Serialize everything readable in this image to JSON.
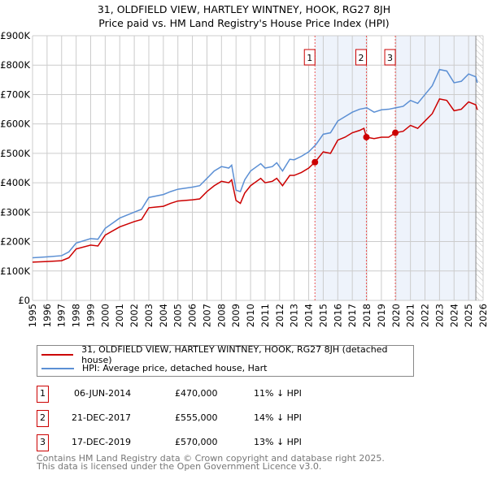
{
  "chart_data": {
    "type": "line",
    "title": "31, OLDFIELD VIEW, HARTLEY WINTNEY, HOOK, RG27 8JH",
    "subtitle": "Price paid vs. HM Land Registry's House Price Index (HPI)",
    "xlim": [
      1995,
      2026
    ],
    "ylim": [
      0,
      900000
    ],
    "x_ticks": [
      "1995",
      "1996",
      "1997",
      "1998",
      "1999",
      "2000",
      "2001",
      "2002",
      "2003",
      "2004",
      "2005",
      "2006",
      "2007",
      "2008",
      "2009",
      "2010",
      "2011",
      "2012",
      "2013",
      "2014",
      "2015",
      "2016",
      "2017",
      "2018",
      "2019",
      "2020",
      "2021",
      "2022",
      "2023",
      "2024",
      "2025",
      "2026"
    ],
    "y_ticks": [
      {
        "v": 0,
        "label": "£0"
      },
      {
        "v": 100000,
        "label": "£100K"
      },
      {
        "v": 200000,
        "label": "£200K"
      },
      {
        "v": 300000,
        "label": "£300K"
      },
      {
        "v": 400000,
        "label": "£400K"
      },
      {
        "v": 500000,
        "label": "£500K"
      },
      {
        "v": 600000,
        "label": "£600K"
      },
      {
        "v": 700000,
        "label": "£700K"
      },
      {
        "v": 800000,
        "label": "£800K"
      },
      {
        "v": 900000,
        "label": "£900K"
      }
    ],
    "grid": true,
    "series": [
      {
        "name": "31, OLDFIELD VIEW, HARTLEY WINTNEY, HOOK, RG27 8JH (detached house)",
        "color": "#cc0000",
        "x": [
          1995,
          1996,
          1997,
          1997.5,
          1998,
          1999,
          1999.5,
          2000,
          2001,
          2002,
          2002.5,
          2003,
          2004,
          2004.5,
          2005,
          2006,
          2006.5,
          2007,
          2007.5,
          2008,
          2008.5,
          2008.7,
          2009,
          2009.3,
          2009.6,
          2010,
          2010.7,
          2011,
          2011.5,
          2011.8,
          2012.2,
          2012.7,
          2013,
          2013.5,
          2014,
          2014.43,
          2015,
          2015.5,
          2016,
          2016.5,
          2017,
          2017.5,
          2017.8,
          2017.97,
          2018.5,
          2019,
          2019.5,
          2019.96,
          2020.5,
          2021,
          2021.5,
          2022,
          2022.5,
          2023,
          2023.5,
          2024,
          2024.5,
          2025,
          2025.5,
          2025.6
        ],
        "y": [
          130000,
          132000,
          135000,
          145000,
          175000,
          188000,
          185000,
          222000,
          250000,
          268000,
          275000,
          315000,
          320000,
          330000,
          338000,
          342000,
          345000,
          370000,
          390000,
          405000,
          400000,
          410000,
          340000,
          330000,
          365000,
          390000,
          415000,
          400000,
          405000,
          415000,
          390000,
          425000,
          425000,
          435000,
          450000,
          470000,
          505000,
          500000,
          545000,
          555000,
          570000,
          578000,
          585000,
          555000,
          550000,
          555000,
          555000,
          570000,
          575000,
          595000,
          585000,
          610000,
          635000,
          685000,
          680000,
          645000,
          650000,
          675000,
          665000,
          648000
        ]
      },
      {
        "name": "HPI: Average price, detached house, Hart",
        "color": "#5b8fd4",
        "x": [
          1995,
          1996,
          1997,
          1997.5,
          1998,
          1999,
          1999.5,
          2000,
          2001,
          2002,
          2002.5,
          2003,
          2004,
          2004.5,
          2005,
          2006,
          2006.5,
          2007,
          2007.5,
          2008,
          2008.5,
          2008.7,
          2009,
          2009.3,
          2009.6,
          2010,
          2010.7,
          2011,
          2011.5,
          2011.8,
          2012.2,
          2012.7,
          2013,
          2013.5,
          2014,
          2014.5,
          2015,
          2015.5,
          2016,
          2016.5,
          2017,
          2017.5,
          2018,
          2018.5,
          2019,
          2019.5,
          2020,
          2020.5,
          2021,
          2021.5,
          2022,
          2022.5,
          2023,
          2023.5,
          2024,
          2024.5,
          2025,
          2025.5,
          2025.6
        ],
        "y": [
          145000,
          148000,
          152000,
          165000,
          195000,
          210000,
          208000,
          245000,
          280000,
          300000,
          310000,
          350000,
          360000,
          370000,
          378000,
          385000,
          390000,
          415000,
          440000,
          455000,
          450000,
          460000,
          375000,
          370000,
          410000,
          440000,
          465000,
          450000,
          455000,
          468000,
          440000,
          480000,
          478000,
          490000,
          505000,
          530000,
          565000,
          570000,
          610000,
          625000,
          640000,
          650000,
          655000,
          640000,
          648000,
          650000,
          655000,
          660000,
          680000,
          670000,
          700000,
          730000,
          785000,
          780000,
          740000,
          745000,
          770000,
          760000,
          740000
        ]
      }
    ],
    "sales": [
      {
        "n": "1",
        "x": 2014.43,
        "y": 470000,
        "date": "06-JUN-2014",
        "price": "£470,000",
        "hpi": "11% ↓ HPI"
      },
      {
        "n": "2",
        "x": 2017.97,
        "y": 555000,
        "date": "21-DEC-2017",
        "price": "£555,000",
        "hpi": "14% ↓ HPI"
      },
      {
        "n": "3",
        "x": 2019.96,
        "y": 570000,
        "date": "17-DEC-2019",
        "price": "£570,000",
        "hpi": "13% ↓ HPI"
      }
    ],
    "shaded": [
      [
        2014.43,
        2017.97
      ],
      [
        2019.96,
        2025.5
      ]
    ],
    "forecast_start": 2025.5
  },
  "footer": {
    "line1": "Contains HM Land Registry data © Crown copyright and database right 2025.",
    "line2": "This data is licensed under the Open Government Licence v3.0."
  }
}
